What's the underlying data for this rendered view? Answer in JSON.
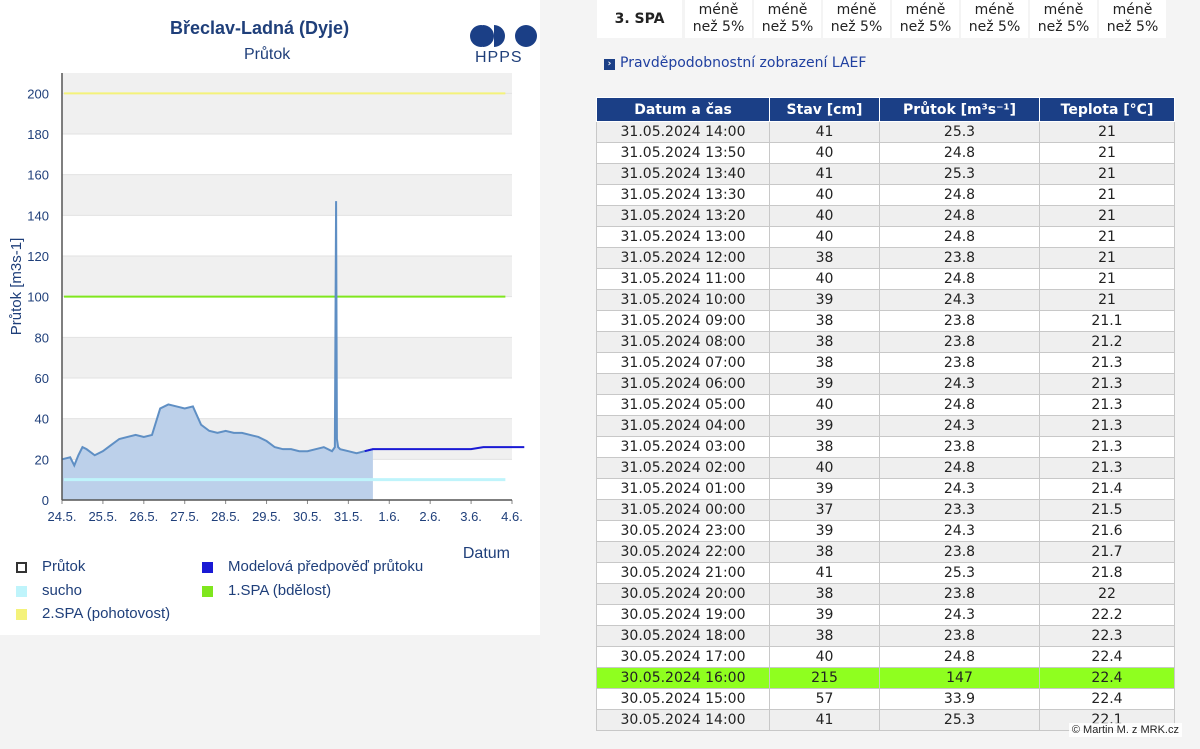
{
  "chart_panel": {
    "title": "Břeclav-Ladná (Dyje)",
    "subtitle": "Průtok",
    "logo_text": "HPPS"
  },
  "chart_data": {
    "type": "line",
    "title": "Břeclav-Ladná (Dyje)",
    "subtitle": "Průtok",
    "xlabel": "Datum",
    "ylabel": "Průtok [m3s-1]",
    "ylim": [
      0,
      210
    ],
    "yticks": [
      "0",
      "20",
      "40",
      "60",
      "80",
      "100",
      "120",
      "140",
      "160",
      "180",
      "200"
    ],
    "xticks": [
      "24.5.",
      "25.5.",
      "26.5.",
      "27.5.",
      "28.5.",
      "29.5.",
      "30.5.",
      "31.5.",
      "1.6.",
      "2.6.",
      "3.6.",
      "4.6."
    ],
    "xlim_days": [
      24,
      35
    ],
    "grid": "horizontal bands",
    "thresholds": [
      {
        "name": "sucho",
        "value": 10,
        "color": "#bff4fb"
      },
      {
        "name": "1.SPA (bdělost)",
        "value": 100,
        "color": "#7fe61e"
      },
      {
        "name": "2.SPA (pohotovost)",
        "value": 200,
        "color": "#f4f27a"
      }
    ],
    "series": [
      {
        "name": "Průtok",
        "color": "#5f8fc4",
        "fill": "#bcd0ea",
        "x": [
          24.0,
          24.2,
          24.3,
          24.4,
          24.5,
          24.6,
          24.8,
          25.0,
          25.2,
          25.4,
          25.6,
          25.8,
          26.0,
          26.2,
          26.4,
          26.6,
          26.8,
          27.0,
          27.2,
          27.4,
          27.6,
          27.8,
          28.0,
          28.2,
          28.4,
          28.6,
          28.8,
          29.0,
          29.2,
          29.4,
          29.6,
          29.8,
          30.0,
          30.2,
          30.4,
          30.6,
          30.67,
          30.7,
          30.72,
          30.75,
          30.8,
          31.0,
          31.2,
          31.4,
          31.6
        ],
        "y": [
          20,
          21,
          17,
          22,
          26,
          25,
          22,
          24,
          27,
          30,
          31,
          32,
          31,
          32,
          45,
          47,
          46,
          45,
          46,
          37,
          34,
          33,
          34,
          33,
          33,
          32,
          31,
          29,
          26,
          25,
          25,
          24,
          24,
          25,
          26,
          24,
          26,
          147,
          30,
          26,
          25,
          24,
          23,
          24,
          25
        ]
      },
      {
        "name": "Modelová předpověď průtoku",
        "color": "#1a1ad4",
        "x": [
          31.4,
          31.6,
          32.0,
          33.0,
          34.0,
          34.3,
          35.3
        ],
        "y": [
          24,
          25,
          25,
          25,
          25,
          26,
          26
        ]
      }
    ]
  },
  "legend": [
    {
      "label": "Průtok",
      "color": "#ffffff",
      "border": "#333333"
    },
    {
      "label": "Modelová předpověď průtoku",
      "color": "#1a1ad4"
    },
    {
      "label": "sucho",
      "color": "#bff4fb"
    },
    {
      "label": "1.SPA (bdělost)",
      "color": "#7fe61e"
    },
    {
      "label": "2.SPA (pohotovost)",
      "color": "#f4f27a"
    }
  ],
  "spa_strip": {
    "label": "3. SPA",
    "cells": [
      "méně|než 5%",
      "méně|než 5%",
      "méně|než 5%",
      "méně|než 5%",
      "méně|než 5%",
      "méně|než 5%",
      "méně|než 5%"
    ]
  },
  "laef_link": "Pravděpodobnostní zobrazení LAEF",
  "table": {
    "headers": [
      "Datum a čas",
      "Stav [cm]",
      "Průtok [m³s⁻¹]",
      "Teplota [°C]"
    ],
    "highlight_color": "#8fff1f",
    "rows": [
      [
        "31.05.2024 14:00",
        "41",
        "25.3",
        "21"
      ],
      [
        "31.05.2024 13:50",
        "40",
        "24.8",
        "21"
      ],
      [
        "31.05.2024 13:40",
        "41",
        "25.3",
        "21"
      ],
      [
        "31.05.2024 13:30",
        "40",
        "24.8",
        "21"
      ],
      [
        "31.05.2024 13:20",
        "40",
        "24.8",
        "21"
      ],
      [
        "31.05.2024 13:00",
        "40",
        "24.8",
        "21"
      ],
      [
        "31.05.2024 12:00",
        "38",
        "23.8",
        "21"
      ],
      [
        "31.05.2024 11:00",
        "40",
        "24.8",
        "21"
      ],
      [
        "31.05.2024 10:00",
        "39",
        "24.3",
        "21"
      ],
      [
        "31.05.2024 09:00",
        "38",
        "23.8",
        "21.1"
      ],
      [
        "31.05.2024 08:00",
        "38",
        "23.8",
        "21.2"
      ],
      [
        "31.05.2024 07:00",
        "38",
        "23.8",
        "21.3"
      ],
      [
        "31.05.2024 06:00",
        "39",
        "24.3",
        "21.3"
      ],
      [
        "31.05.2024 05:00",
        "40",
        "24.8",
        "21.3"
      ],
      [
        "31.05.2024 04:00",
        "39",
        "24.3",
        "21.3"
      ],
      [
        "31.05.2024 03:00",
        "38",
        "23.8",
        "21.3"
      ],
      [
        "31.05.2024 02:00",
        "40",
        "24.8",
        "21.3"
      ],
      [
        "31.05.2024 01:00",
        "39",
        "24.3",
        "21.4"
      ],
      [
        "31.05.2024 00:00",
        "37",
        "23.3",
        "21.5"
      ],
      [
        "30.05.2024 23:00",
        "39",
        "24.3",
        "21.6"
      ],
      [
        "30.05.2024 22:00",
        "38",
        "23.8",
        "21.7"
      ],
      [
        "30.05.2024 21:00",
        "41",
        "25.3",
        "21.8"
      ],
      [
        "30.05.2024 20:00",
        "38",
        "23.8",
        "22"
      ],
      [
        "30.05.2024 19:00",
        "39",
        "24.3",
        "22.2"
      ],
      [
        "30.05.2024 18:00",
        "38",
        "23.8",
        "22.3"
      ],
      [
        "30.05.2024 17:00",
        "40",
        "24.8",
        "22.4"
      ],
      [
        "30.05.2024 16:00",
        "215",
        "147",
        "22.4"
      ],
      [
        "30.05.2024 15:00",
        "57",
        "33.9",
        "22.4"
      ],
      [
        "30.05.2024 14:00",
        "41",
        "25.3",
        "22.1"
      ]
    ],
    "highlight_row": 26
  },
  "credit": "© Martin M. z MRK.cz"
}
